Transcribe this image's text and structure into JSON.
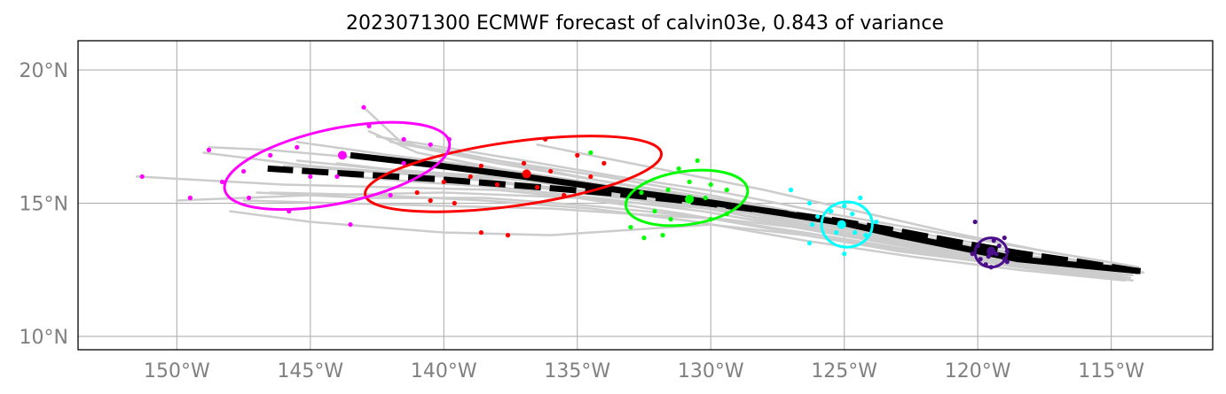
{
  "chart_data": {
    "type": "scatter",
    "title": "2023071300 ECMWF forecast of calvin03e, 0.843 of variance",
    "xlim": [
      -153.7,
      -111.2
    ],
    "ylim": [
      9.5,
      21.1
    ],
    "x_ticks": [
      {
        "value": -150,
        "label": "150°W"
      },
      {
        "value": -145,
        "label": "145°W"
      },
      {
        "value": -140,
        "label": "140°W"
      },
      {
        "value": -135,
        "label": "135°W"
      },
      {
        "value": -130,
        "label": "130°W"
      },
      {
        "value": -125,
        "label": "125°W"
      },
      {
        "value": -120,
        "label": "120°W"
      },
      {
        "value": -115,
        "label": "115°W"
      }
    ],
    "y_ticks": [
      {
        "value": 10,
        "label": "10°N"
      },
      {
        "value": 15,
        "label": "15°N"
      },
      {
        "value": 20,
        "label": "20°N"
      }
    ],
    "grid": true,
    "colors": {
      "ensemble": "#cccccc",
      "mean_track": "#000000",
      "grid": "#b0b0b0",
      "groups": [
        "#4b0f8c",
        "#00ffff",
        "#00ff00",
        "#ff0000",
        "#ff00ff"
      ]
    },
    "mean_track": [
      [
        -113.9,
        12.45
      ],
      [
        -116.0,
        12.65
      ],
      [
        -118.5,
        12.9
      ],
      [
        -120.5,
        13.3
      ],
      [
        -123.0,
        13.8
      ],
      [
        -125.0,
        14.25
      ],
      [
        -127.5,
        14.65
      ],
      [
        -130.5,
        15.1
      ],
      [
        -133.5,
        15.5
      ],
      [
        -137.0,
        16.0
      ],
      [
        -140.5,
        16.45
      ],
      [
        -143.5,
        16.8
      ]
    ],
    "dashed_track": [
      [
        -114.0,
        12.45
      ],
      [
        -116.2,
        12.8
      ],
      [
        -118.6,
        13.15
      ],
      [
        -120.8,
        13.55
      ],
      [
        -123.2,
        14.0
      ],
      [
        -125.3,
        14.35
      ],
      [
        -127.8,
        14.7
      ],
      [
        -130.6,
        15.05
      ],
      [
        -133.5,
        15.35
      ],
      [
        -137.0,
        15.65
      ],
      [
        -140.2,
        15.9
      ],
      [
        -143.5,
        16.1
      ],
      [
        -146.6,
        16.3
      ]
    ],
    "ensemble_tracks": [
      [
        [
          -114.0,
          12.4
        ],
        [
          -118.0,
          12.9
        ],
        [
          -122.0,
          13.6
        ],
        [
          -126.0,
          14.4
        ],
        [
          -130.0,
          15.0
        ],
        [
          -134.0,
          15.6
        ],
        [
          -138.0,
          16.3
        ],
        [
          -141.0,
          16.9
        ],
        [
          -142.8,
          17.7
        ]
      ],
      [
        [
          -114.2,
          12.3
        ],
        [
          -118.5,
          12.8
        ],
        [
          -122.5,
          13.5
        ],
        [
          -126.5,
          14.2
        ],
        [
          -130.5,
          15.0
        ],
        [
          -135.0,
          15.5
        ],
        [
          -140.0,
          16.0
        ],
        [
          -145.0,
          16.4
        ],
        [
          -149.0,
          16.9
        ]
      ],
      [
        [
          -114.3,
          12.5
        ],
        [
          -118.0,
          13.0
        ],
        [
          -122.0,
          13.7
        ],
        [
          -126.0,
          14.5
        ],
        [
          -130.0,
          15.3
        ],
        [
          -134.0,
          16.0
        ],
        [
          -138.0,
          16.6
        ],
        [
          -141.5,
          17.2
        ],
        [
          -143.0,
          18.6
        ]
      ],
      [
        [
          -114.5,
          12.2
        ],
        [
          -119.0,
          12.7
        ],
        [
          -123.0,
          13.2
        ],
        [
          -127.0,
          13.9
        ],
        [
          -131.0,
          14.6
        ],
        [
          -135.0,
          15.2
        ],
        [
          -140.0,
          15.4
        ],
        [
          -145.0,
          15.3
        ],
        [
          -150.0,
          15.1
        ]
      ],
      [
        [
          -114.2,
          12.1
        ],
        [
          -118.5,
          12.6
        ],
        [
          -122.5,
          13.2
        ],
        [
          -126.5,
          13.8
        ],
        [
          -130.0,
          14.2
        ],
        [
          -133.0,
          14.0
        ],
        [
          -136.0,
          13.8
        ],
        [
          -140.0,
          13.9
        ],
        [
          -145.0,
          14.3
        ],
        [
          -148.0,
          14.7
        ]
      ],
      [
        [
          -114.0,
          12.6
        ],
        [
          -117.5,
          13.2
        ],
        [
          -121.5,
          13.9
        ],
        [
          -125.5,
          14.6
        ],
        [
          -129.5,
          15.4
        ],
        [
          -133.5,
          16.0
        ],
        [
          -137.0,
          16.6
        ],
        [
          -140.0,
          17.1
        ],
        [
          -142.5,
          17.5
        ]
      ],
      [
        [
          -114.1,
          12.4
        ],
        [
          -118.2,
          12.9
        ],
        [
          -122.3,
          13.5
        ],
        [
          -126.0,
          14.3
        ],
        [
          -130.0,
          14.8
        ],
        [
          -134.0,
          15.1
        ],
        [
          -138.0,
          15.5
        ],
        [
          -142.0,
          15.6
        ],
        [
          -146.0,
          15.7
        ],
        [
          -151.5,
          16.0
        ]
      ],
      [
        [
          -114.3,
          12.3
        ],
        [
          -118.0,
          12.8
        ],
        [
          -122.0,
          13.4
        ],
        [
          -126.0,
          14.0
        ],
        [
          -129.5,
          14.4
        ],
        [
          -133.0,
          14.6
        ],
        [
          -136.0,
          14.8
        ],
        [
          -140.0,
          14.9
        ],
        [
          -144.0,
          15.0
        ],
        [
          -147.5,
          15.1
        ]
      ],
      [
        [
          -114.0,
          12.5
        ],
        [
          -117.8,
          13.1
        ],
        [
          -121.8,
          13.8
        ],
        [
          -125.8,
          14.5
        ],
        [
          -130.0,
          15.2
        ],
        [
          -134.5,
          15.9
        ],
        [
          -138.0,
          16.5
        ],
        [
          -140.5,
          17.0
        ],
        [
          -141.8,
          17.4
        ]
      ],
      [
        [
          -114.6,
          12.2
        ],
        [
          -118.8,
          12.7
        ],
        [
          -122.8,
          13.3
        ],
        [
          -126.5,
          13.9
        ],
        [
          -130.5,
          14.5
        ],
        [
          -134.5,
          14.9
        ],
        [
          -138.5,
          15.2
        ],
        [
          -143.0,
          15.2
        ],
        [
          -147.0,
          15.4
        ]
      ],
      [
        [
          -114.2,
          12.4
        ],
        [
          -118.0,
          12.9
        ],
        [
          -122.0,
          13.6
        ],
        [
          -126.0,
          14.3
        ],
        [
          -130.0,
          15.0
        ],
        [
          -134.0,
          15.7
        ],
        [
          -138.0,
          16.3
        ],
        [
          -142.0,
          16.8
        ],
        [
          -145.5,
          17.3
        ]
      ],
      [
        [
          -114.4,
          12.3
        ],
        [
          -118.2,
          12.8
        ],
        [
          -122.2,
          13.4
        ],
        [
          -126.2,
          14.1
        ],
        [
          -130.2,
          14.8
        ],
        [
          -134.2,
          15.3
        ],
        [
          -138.2,
          15.8
        ],
        [
          -141.5,
          16.2
        ],
        [
          -144.0,
          16.5
        ]
      ],
      [
        [
          -114.1,
          12.5
        ],
        [
          -117.9,
          13.0
        ],
        [
          -121.9,
          13.7
        ],
        [
          -125.9,
          14.4
        ],
        [
          -129.9,
          15.1
        ],
        [
          -133.9,
          15.8
        ],
        [
          -137.0,
          16.4
        ],
        [
          -140.0,
          17.0
        ],
        [
          -142.0,
          17.3
        ]
      ],
      [
        [
          -113.8,
          12.4
        ],
        [
          -117.5,
          12.9
        ],
        [
          -121.5,
          13.5
        ],
        [
          -125.5,
          14.2
        ],
        [
          -129.5,
          15.0
        ],
        [
          -133.5,
          15.6
        ],
        [
          -137.5,
          16.2
        ],
        [
          -142.0,
          16.6
        ],
        [
          -146.5,
          17.0
        ],
        [
          -148.8,
          17.1
        ]
      ],
      [
        [
          -114.5,
          12.1
        ],
        [
          -118.5,
          12.5
        ],
        [
          -122.5,
          13.0
        ],
        [
          -126.5,
          13.6
        ],
        [
          -130.5,
          14.3
        ],
        [
          -134.5,
          14.8
        ],
        [
          -138.5,
          15.1
        ],
        [
          -142.5,
          15.3
        ],
        [
          -146.5,
          15.4
        ]
      ],
      [
        [
          -114.0,
          12.6
        ],
        [
          -117.5,
          13.2
        ],
        [
          -121.0,
          13.9
        ],
        [
          -124.5,
          14.7
        ],
        [
          -128.0,
          15.5
        ],
        [
          -131.5,
          16.2
        ],
        [
          -134.5,
          16.8
        ],
        [
          -136.5,
          17.2
        ]
      ],
      [
        [
          -114.3,
          12.2
        ],
        [
          -118.3,
          12.7
        ],
        [
          -122.3,
          13.3
        ],
        [
          -126.3,
          14.0
        ],
        [
          -130.3,
          14.7
        ],
        [
          -134.3,
          15.2
        ],
        [
          -138.0,
          15.6
        ],
        [
          -141.0,
          15.8
        ],
        [
          -143.5,
          16.0
        ]
      ],
      [
        [
          -114.2,
          12.5
        ],
        [
          -118.2,
          13.0
        ],
        [
          -122.2,
          13.6
        ],
        [
          -126.2,
          14.4
        ],
        [
          -130.2,
          15.1
        ],
        [
          -134.2,
          15.6
        ],
        [
          -138.2,
          16.0
        ],
        [
          -142.5,
          16.3
        ],
        [
          -145.5,
          16.6
        ]
      ],
      [
        [
          -114.6,
          12.3
        ],
        [
          -118.6,
          12.8
        ],
        [
          -122.6,
          13.4
        ],
        [
          -126.6,
          14.1
        ],
        [
          -130.6,
          14.9
        ],
        [
          -134.6,
          15.4
        ],
        [
          -138.6,
          15.9
        ],
        [
          -143.0,
          16.2
        ],
        [
          -146.0,
          16.4
        ]
      ],
      [
        [
          -114.0,
          12.4
        ],
        [
          -118.0,
          12.9
        ],
        [
          -122.0,
          13.5
        ],
        [
          -126.0,
          14.2
        ],
        [
          -130.0,
          14.9
        ],
        [
          -134.0,
          15.5
        ],
        [
          -137.5,
          15.9
        ],
        [
          -141.0,
          16.1
        ]
      ]
    ],
    "groups": [
      {
        "color": "#4b0f8c",
        "ellipse": {
          "cx": -119.5,
          "cy": 13.15,
          "rx": 0.6,
          "ry": 0.55,
          "angle": 0
        },
        "mean": [
          -119.5,
          13.2
        ],
        "points": [
          [
            -120.1,
            14.3
          ],
          [
            -119.0,
            13.7
          ],
          [
            -120.2,
            13.1
          ],
          [
            -118.9,
            13.2
          ],
          [
            -119.5,
            12.6
          ],
          [
            -119.9,
            12.9
          ],
          [
            -119.2,
            13.4
          ],
          [
            -119.7,
            12.7
          ],
          [
            -119.0,
            12.9
          ],
          [
            -120.0,
            13.4
          ],
          [
            -119.4,
            13.6
          ],
          [
            -118.9,
            12.8
          ],
          [
            -119.6,
            13.0
          ],
          [
            -119.3,
            13.1
          ]
        ]
      },
      {
        "color": "#00ffff",
        "ellipse": {
          "cx": -124.9,
          "cy": 14.2,
          "rx": 0.95,
          "ry": 0.85,
          "angle": 0
        },
        "mean": [
          -125.1,
          14.2
        ],
        "points": [
          [
            -127.0,
            15.5
          ],
          [
            -126.3,
            15.0
          ],
          [
            -124.4,
            15.2
          ],
          [
            -123.8,
            14.3
          ],
          [
            -124.2,
            13.8
          ],
          [
            -125.0,
            13.1
          ],
          [
            -126.3,
            13.5
          ],
          [
            -126.0,
            14.5
          ],
          [
            -125.5,
            14.7
          ],
          [
            -124.7,
            14.6
          ],
          [
            -125.3,
            13.9
          ],
          [
            -124.6,
            13.9
          ],
          [
            -126.2,
            14.2
          ],
          [
            -125.0,
            14.9
          ]
        ]
      },
      {
        "color": "#00ff00",
        "ellipse": {
          "cx": -130.9,
          "cy": 15.2,
          "rx": 2.3,
          "ry": 1.0,
          "angle": 8
        },
        "mean": [
          -130.8,
          15.15
        ],
        "points": [
          [
            -130.5,
            16.6
          ],
          [
            -131.2,
            16.3
          ],
          [
            -132.6,
            15.4
          ],
          [
            -132.1,
            14.7
          ],
          [
            -131.5,
            14.4
          ],
          [
            -130.0,
            14.4
          ],
          [
            -129.4,
            14.6
          ],
          [
            -129.4,
            15.5
          ],
          [
            -130.0,
            15.7
          ],
          [
            -130.8,
            15.8
          ],
          [
            -131.6,
            15.5
          ],
          [
            -133.0,
            14.1
          ],
          [
            -132.5,
            13.7
          ],
          [
            -131.8,
            13.8
          ],
          [
            -134.5,
            16.9
          ],
          [
            -130.2,
            15.2
          ]
        ]
      },
      {
        "color": "#ff0000",
        "ellipse": {
          "cx": -137.4,
          "cy": 16.1,
          "rx": 5.6,
          "ry": 1.2,
          "angle": 8
        },
        "mean": [
          -136.9,
          16.1
        ],
        "points": [
          [
            -136.2,
            17.4
          ],
          [
            -137.0,
            16.5
          ],
          [
            -138.6,
            16.4
          ],
          [
            -140.0,
            15.8
          ],
          [
            -139.6,
            15.0
          ],
          [
            -138.6,
            13.9
          ],
          [
            -137.6,
            13.8
          ],
          [
            -135.5,
            15.3
          ],
          [
            -134.5,
            16.0
          ],
          [
            -134.0,
            16.5
          ],
          [
            -135.0,
            16.8
          ],
          [
            -136.5,
            15.6
          ],
          [
            -138.0,
            15.7
          ],
          [
            -139.0,
            16.0
          ],
          [
            -140.5,
            15.1
          ],
          [
            -141.0,
            15.4
          ],
          [
            -136.0,
            16.2
          ]
        ]
      },
      {
        "color": "#ff00ff",
        "ellipse": {
          "cx": -144.0,
          "cy": 16.4,
          "rx": 4.3,
          "ry": 1.4,
          "angle": 12
        },
        "mean": [
          -143.8,
          16.8
        ],
        "points": [
          [
            -143.0,
            18.6
          ],
          [
            -142.8,
            17.9
          ],
          [
            -141.5,
            17.4
          ],
          [
            -140.5,
            17.2
          ],
          [
            -139.8,
            17.4
          ],
          [
            -145.5,
            17.1
          ],
          [
            -146.5,
            16.8
          ],
          [
            -147.5,
            16.2
          ],
          [
            -148.8,
            17.0
          ],
          [
            -149.5,
            15.2
          ],
          [
            -151.3,
            16.0
          ],
          [
            -148.3,
            15.8
          ],
          [
            -147.3,
            15.2
          ],
          [
            -145.8,
            14.7
          ],
          [
            -143.5,
            14.2
          ],
          [
            -142.0,
            15.3
          ],
          [
            -141.5,
            16.5
          ],
          [
            -144.0,
            16.0
          ],
          [
            -145.0,
            16.0
          ]
        ]
      }
    ]
  }
}
